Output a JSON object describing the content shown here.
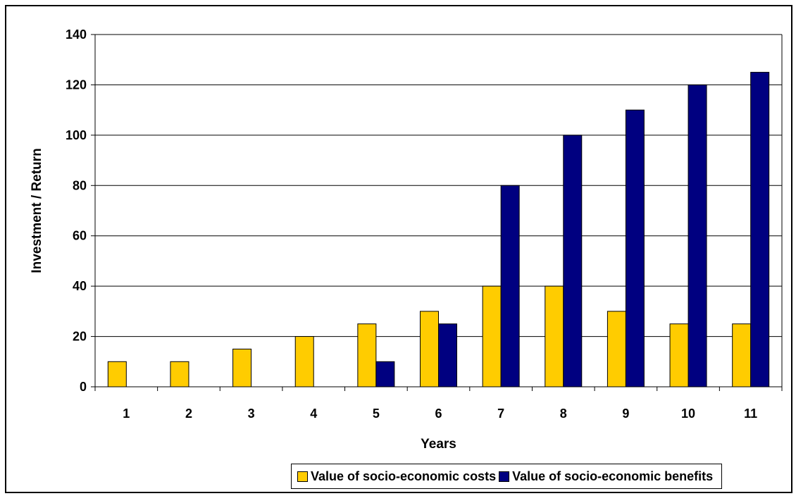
{
  "chart_data": {
    "type": "bar",
    "xlabel": "Years",
    "ylabel": "Investment / Return",
    "categories": [
      "1",
      "2",
      "3",
      "4",
      "5",
      "6",
      "7",
      "8",
      "9",
      "10",
      "11"
    ],
    "series": [
      {
        "name": "Value of socio-economic costs",
        "color": "#FFCC00",
        "values": [
          10,
          10,
          15,
          20,
          25,
          30,
          40,
          40,
          30,
          25,
          25
        ]
      },
      {
        "name": "Value of socio-economic benefits",
        "color": "#000080",
        "values": [
          0,
          0,
          0,
          0,
          10,
          25,
          80,
          100,
          110,
          120,
          125
        ]
      }
    ],
    "ylim": [
      0,
      140
    ],
    "yticks": [
      0,
      20,
      40,
      60,
      80,
      100,
      120,
      140
    ],
    "grid": true,
    "legend_position": "bottom"
  }
}
